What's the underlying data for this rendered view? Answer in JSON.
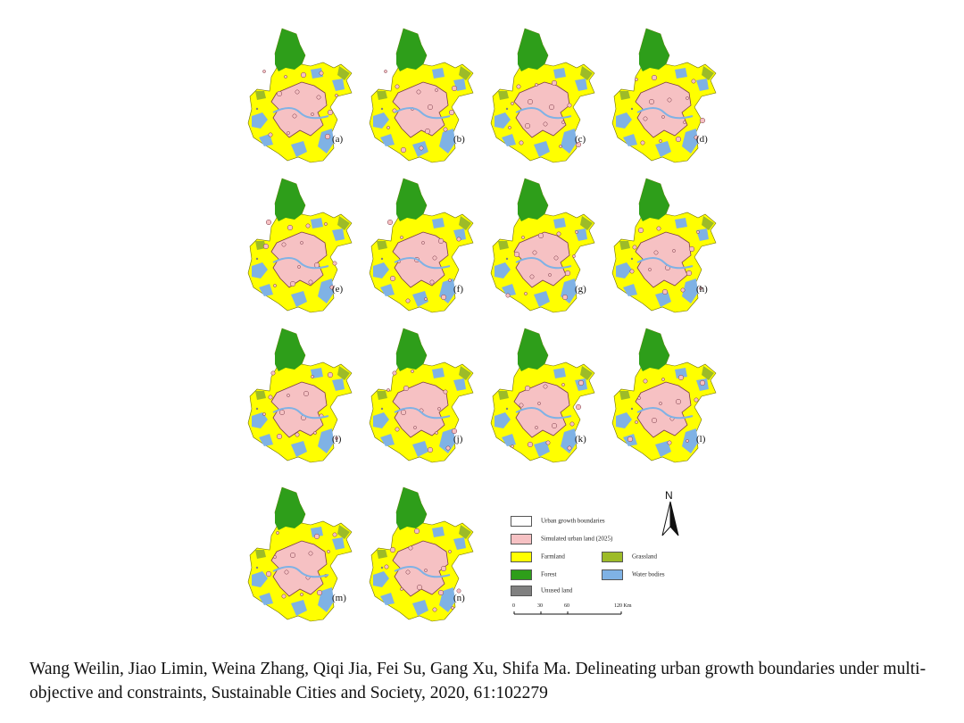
{
  "panels": [
    "(a)",
    "(b)",
    "(c)",
    "(d)",
    "(e)",
    "(f)",
    "(g)",
    "(h)",
    "(i)",
    "(j)",
    "(k)",
    "(l)",
    "(m)",
    "(n)"
  ],
  "legend": {
    "items": [
      {
        "label": "Urban growth boundaries",
        "color": "#ffffff"
      },
      {
        "label": "Simulated urban land (2025)",
        "color": "#f6c1c3"
      },
      {
        "label": "Farmland",
        "color": "#ffff00"
      },
      {
        "label": "Forest",
        "color": "#2e9e1a"
      },
      {
        "label": "Unused land",
        "color": "#808080"
      },
      {
        "label": "Grassland",
        "color": "#9dbb28"
      },
      {
        "label": "Water bodies",
        "color": "#7fb2e5"
      }
    ]
  },
  "north_label": "N",
  "scale": {
    "ticks": [
      "0",
      "30",
      "60",
      "120 Km"
    ]
  },
  "citation": "Wang Weilin, Jiao Limin, Weina Zhang, Qiqi Jia, Fei Su, Gang Xu, Shifa Ma. Delineating urban growth boundaries under multi-objective and constraints, Sustainable Cities and Society, 2020, 61:102279"
}
